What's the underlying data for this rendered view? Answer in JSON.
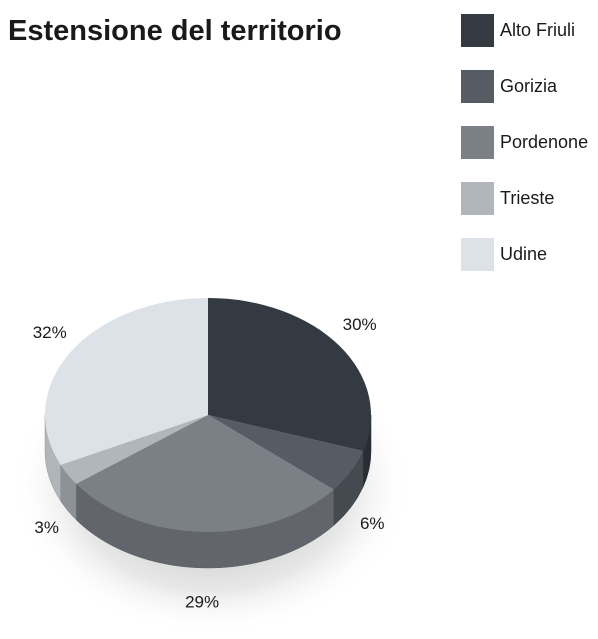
{
  "chart_data": {
    "type": "pie",
    "title": "Estensione del territorio",
    "categories": [
      "Alto Friuli",
      "Gorizia",
      "Pordenone",
      "Trieste",
      "Udine"
    ],
    "values": [
      30,
      6,
      29,
      3,
      32
    ],
    "value_labels": [
      "30%",
      "6%",
      "29%",
      "3%",
      "32%"
    ],
    "colors": [
      "#333a42",
      "#555c63",
      "#7b8087",
      "#b0b6bb",
      "#dce2e8"
    ],
    "legend": "top-right"
  }
}
